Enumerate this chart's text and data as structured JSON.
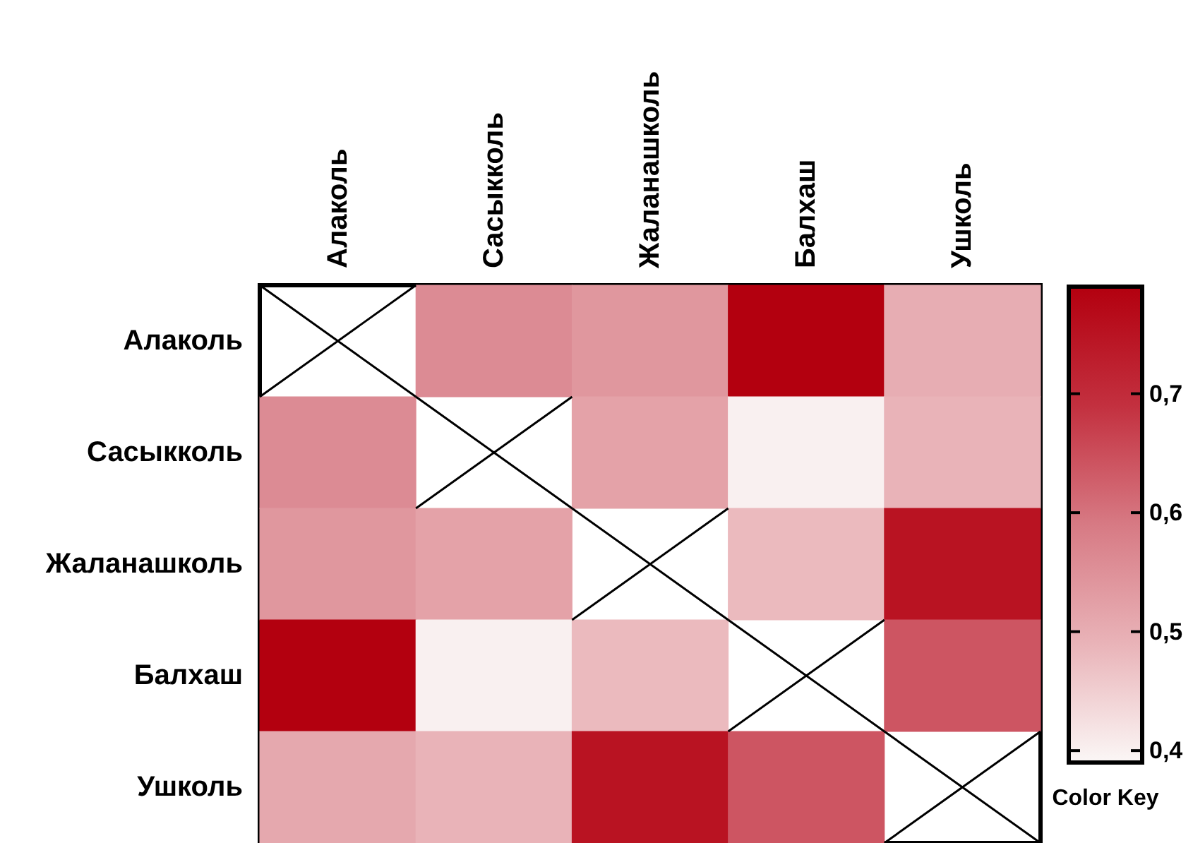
{
  "chart_data": {
    "type": "heatmap",
    "clabel": "Color Key",
    "categories": [
      "Алаколь",
      "Сасыкколь",
      "Жаланашколь",
      "Балхаш",
      "Ушколь"
    ],
    "y_categories": [
      "Алаколь",
      "Сасыкколь",
      "Жаланашколь",
      "Балхаш",
      "Ушколь"
    ],
    "cells": [
      [
        null,
        0.56,
        0.54,
        0.79,
        0.5
      ],
      [
        0.56,
        null,
        0.52,
        0.4,
        0.49
      ],
      [
        0.54,
        0.52,
        null,
        0.48,
        0.75
      ],
      [
        0.79,
        0.4,
        0.48,
        null,
        0.64
      ],
      [
        0.51,
        0.49,
        0.75,
        0.64,
        null
      ]
    ],
    "clim": [
      0.39,
      0.79
    ],
    "cticks": [
      {
        "value": 0.4,
        "label": "0,4"
      },
      {
        "value": 0.5,
        "label": "0,5"
      },
      {
        "value": 0.6,
        "label": "0,6"
      },
      {
        "value": 0.7,
        "label": "0,7"
      }
    ]
  }
}
